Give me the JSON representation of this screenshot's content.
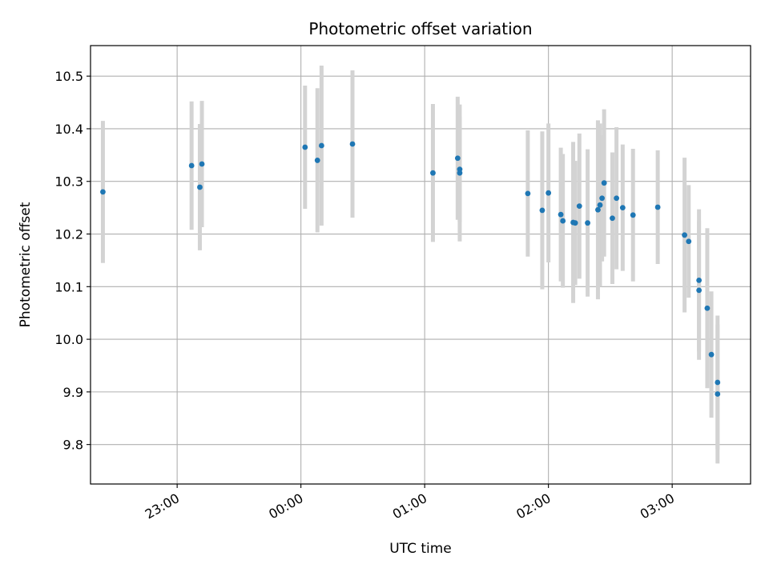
{
  "chart_data": {
    "type": "scatter",
    "title": "Photometric offset variation",
    "xlabel": "UTC time",
    "ylabel": "Photometric offset",
    "x_axis_kind": "time",
    "x_tick_labels": [
      "23:00",
      "00:00",
      "01:00",
      "02:00",
      "03:00"
    ],
    "y_tick_labels": [
      "9.8",
      "9.9",
      "10.0",
      "10.1",
      "10.2",
      "10.3",
      "10.4",
      "10.5"
    ],
    "xlim": [
      "22:18",
      "03:38"
    ],
    "ylim": [
      9.725,
      10.558
    ],
    "grid": true,
    "marker_color": "#1f77b4",
    "errorbar_color": "#d3d3d3",
    "series": [
      {
        "points": [
          {
            "x": "22:24",
            "y": 10.28,
            "err": 0.135
          },
          {
            "x": "23:07",
            "y": 10.33,
            "err": 0.122
          },
          {
            "x": "23:11",
            "y": 10.289,
            "err": 0.12
          },
          {
            "x": "23:12",
            "y": 10.333,
            "err": 0.12
          },
          {
            "x": "00:02",
            "y": 10.365,
            "err": 0.117
          },
          {
            "x": "00:08",
            "y": 10.34,
            "err": 0.137
          },
          {
            "x": "00:10",
            "y": 10.368,
            "err": 0.152
          },
          {
            "x": "00:25",
            "y": 10.371,
            "err": 0.14
          },
          {
            "x": "01:04",
            "y": 10.316,
            "err": 0.131
          },
          {
            "x": "01:16",
            "y": 10.344,
            "err": 0.117
          },
          {
            "x": "01:17",
            "y": 10.323,
            "err": 0.1
          },
          {
            "x": "01:17",
            "y": 10.316,
            "err": 0.13
          },
          {
            "x": "01:50",
            "y": 10.277,
            "err": 0.12
          },
          {
            "x": "01:57",
            "y": 10.245,
            "err": 0.15
          },
          {
            "x": "02:00",
            "y": 10.278,
            "err": 0.132
          },
          {
            "x": "02:06",
            "y": 10.237,
            "err": 0.127
          },
          {
            "x": "02:07",
            "y": 10.225,
            "err": 0.127
          },
          {
            "x": "02:12",
            "y": 10.222,
            "err": 0.153
          },
          {
            "x": "02:13",
            "y": 10.221,
            "err": 0.118
          },
          {
            "x": "02:15",
            "y": 10.253,
            "err": 0.138
          },
          {
            "x": "02:19",
            "y": 10.221,
            "err": 0.14
          },
          {
            "x": "02:24",
            "y": 10.246,
            "err": 0.17
          },
          {
            "x": "02:25",
            "y": 10.255,
            "err": 0.155
          },
          {
            "x": "02:26",
            "y": 10.268,
            "err": 0.12
          },
          {
            "x": "02:27",
            "y": 10.297,
            "err": 0.14
          },
          {
            "x": "02:31",
            "y": 10.23,
            "err": 0.125
          },
          {
            "x": "02:33",
            "y": 10.268,
            "err": 0.135
          },
          {
            "x": "02:36",
            "y": 10.25,
            "err": 0.12
          },
          {
            "x": "02:41",
            "y": 10.236,
            "err": 0.126
          },
          {
            "x": "02:53",
            "y": 10.251,
            "err": 0.108
          },
          {
            "x": "03:06",
            "y": 10.198,
            "err": 0.147
          },
          {
            "x": "03:08",
            "y": 10.186,
            "err": 0.107
          },
          {
            "x": "03:13",
            "y": 10.112,
            "err": 0.135
          },
          {
            "x": "03:13",
            "y": 10.093,
            "err": 0.132
          },
          {
            "x": "03:17",
            "y": 10.059,
            "err": 0.152
          },
          {
            "x": "03:19",
            "y": 9.971,
            "err": 0.12
          },
          {
            "x": "03:22",
            "y": 9.918,
            "err": 0.127
          },
          {
            "x": "03:22",
            "y": 9.896,
            "err": 0.132
          }
        ]
      }
    ]
  }
}
